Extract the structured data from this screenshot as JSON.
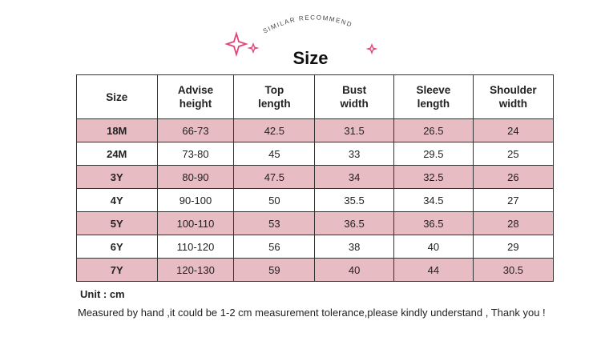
{
  "header": {
    "tagline": "SIMILAR RECOMMEND",
    "title": "Size"
  },
  "table": {
    "columns": [
      [
        "Size"
      ],
      [
        "Advise",
        "height"
      ],
      [
        "Top",
        "length"
      ],
      [
        "Bust",
        "width"
      ],
      [
        "Sleeve",
        "length"
      ],
      [
        "Shoulder",
        "width"
      ]
    ],
    "rows": [
      [
        "18M",
        "66-73",
        "42.5",
        "31.5",
        "26.5",
        "24"
      ],
      [
        "24M",
        "73-80",
        "45",
        "33",
        "29.5",
        "25"
      ],
      [
        "3Y",
        "80-90",
        "47.5",
        "34",
        "32.5",
        "26"
      ],
      [
        "4Y",
        "90-100",
        "50",
        "35.5",
        "34.5",
        "27"
      ],
      [
        "5Y",
        "100-110",
        "53",
        "36.5",
        "36.5",
        "28"
      ],
      [
        "6Y",
        "110-120",
        "56",
        "38",
        "40",
        "29"
      ],
      [
        "7Y",
        "120-130",
        "59",
        "40",
        "44",
        "30.5"
      ]
    ]
  },
  "footer": {
    "unit": "Unit : cm",
    "note": "Measured by hand ,it could be 1-2 cm measurement tolerance,please kindly understand , Thank you !"
  }
}
